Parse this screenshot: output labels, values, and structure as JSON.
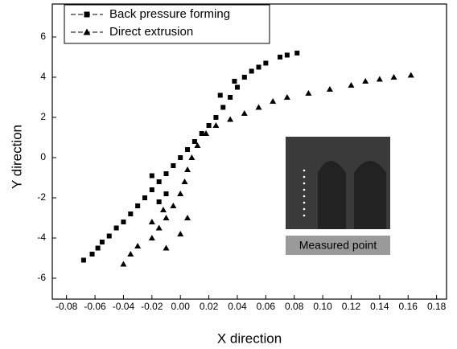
{
  "chart_data": {
    "type": "scatter",
    "x_label": "X direction",
    "y_label": "Y direction",
    "annotations": [
      "Measured point"
    ],
    "xlim": [
      -0.09,
      0.187
    ],
    "xticks": [
      -0.08,
      -0.06,
      -0.04,
      -0.02,
      {
        "value": 0,
        "label": "0.00"
      },
      0.02,
      0.04,
      0.06,
      0.08,
      {
        "value": 0.1,
        "label": "0.10"
      },
      0.12,
      0.14,
      0.16,
      0.18
    ],
    "ylim": [
      -7.04,
      7.64
    ],
    "yticks": [
      -6,
      -4,
      -2,
      0,
      2,
      4,
      6
    ],
    "legend_position": "upper left",
    "series": [
      {
        "name": "Back pressure forming",
        "color": "#000000",
        "marker": "square",
        "x": [
          -0.068,
          -0.062,
          -0.058,
          -0.055,
          -0.05,
          -0.045,
          -0.04,
          -0.035,
          -0.03,
          -0.025,
          -0.02,
          -0.015,
          -0.01,
          -0.005,
          0,
          0.005,
          0.01,
          0.015,
          0.02,
          0.025,
          0.03,
          0.035,
          0.04,
          0.045,
          0.05,
          0.055,
          0.06,
          0.07,
          0.075,
          0.082,
          -0.015,
          -0.01,
          -0.02,
          0.028,
          0.038
        ],
        "values": [
          -5.1,
          -4.8,
          -4.5,
          -4.2,
          -3.9,
          -3.5,
          -3.2,
          -2.8,
          -2.4,
          -2.0,
          -1.6,
          -1.2,
          -0.8,
          -0.4,
          0,
          0.4,
          0.8,
          1.2,
          1.6,
          2.0,
          2.5,
          3.0,
          3.5,
          4.0,
          4.3,
          4.5,
          4.7,
          5.0,
          5.1,
          5.2,
          -2.2,
          -1.8,
          -0.9,
          3.1,
          3.8
        ]
      },
      {
        "name": "Direct extrusion",
        "color": "#000000",
        "marker": "triangle",
        "x": [
          -0.04,
          -0.035,
          -0.03,
          -0.02,
          -0.015,
          -0.01,
          -0.005,
          0,
          0.003,
          0.005,
          0.008,
          0.012,
          0.018,
          0.025,
          0.035,
          0.045,
          0.055,
          0.065,
          0.075,
          0.09,
          0.105,
          0.12,
          0.13,
          0.14,
          0.15,
          0.162,
          -0.01,
          0,
          0.005,
          -0.02,
          -0.012
        ],
        "values": [
          -5.3,
          -4.8,
          -4.4,
          -4.0,
          -3.5,
          -3.0,
          -2.4,
          -1.8,
          -1.2,
          -0.6,
          0,
          0.6,
          1.2,
          1.6,
          1.9,
          2.2,
          2.5,
          2.8,
          3.0,
          3.2,
          3.4,
          3.6,
          3.8,
          3.9,
          4.0,
          4.1,
          -4.5,
          -3.8,
          -3.0,
          -3.2,
          -2.6
        ]
      }
    ]
  }
}
